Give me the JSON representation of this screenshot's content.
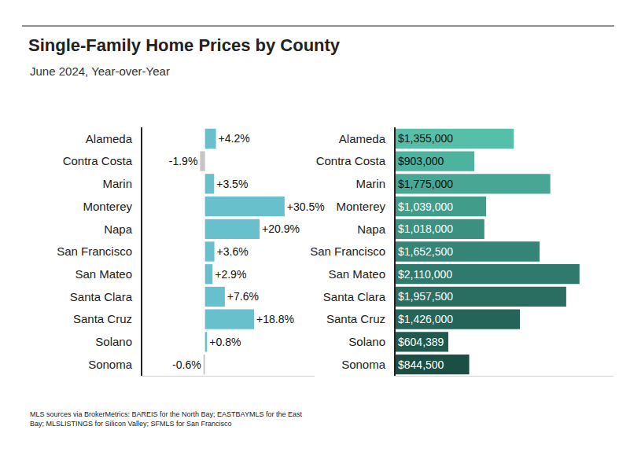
{
  "chart_data": [
    {
      "type": "bar",
      "title": "Single-Family Home Prices by County",
      "subtitle": "June 2024, Year-over-Year",
      "annotations": [
        "MLS sources via BrokerMetrics: BAREIS for the North Bay; EASTBAYMLS for the East",
        "Bay; MLSLISTINGS for Silicon Valley; SFMLS for San Francisco"
      ],
      "orientation": "horizontal",
      "categories": [
        "Alameda",
        "Contra Costa",
        "Marin",
        "Monterey",
        "Napa",
        "San Francisco",
        "San Mateo",
        "Santa Clara",
        "Santa Cruz",
        "Solano",
        "Sonoma"
      ],
      "values": [
        4.2,
        -1.9,
        3.5,
        30.5,
        20.9,
        3.6,
        2.9,
        7.6,
        18.8,
        0.8,
        -0.6
      ],
      "value_labels": [
        "+4.2%",
        "-1.9%",
        "+3.5%",
        "+30.5%",
        "+20.9%",
        "+3.6%",
        "+2.9%",
        "+7.6%",
        "+18.8%",
        "+0.8%",
        "-0.6%"
      ],
      "data_labels": true,
      "colors": [
        "#67c0cc",
        "#c6c6c6",
        "#67c0cc",
        "#67c0cc",
        "#67c0cc",
        "#67c0cc",
        "#67c0cc",
        "#67c0cc",
        "#67c0cc",
        "#67c0cc",
        "#c6c6c6"
      ],
      "xlim": [
        -24,
        42
      ],
      "xticks": [],
      "tick_labels": "y",
      "grid": false
    },
    {
      "type": "bar",
      "orientation": "horizontal",
      "categories": [
        "Alameda",
        "Contra Costa",
        "Marin",
        "Monterey",
        "Napa",
        "San Francisco",
        "San Mateo",
        "Santa Clara",
        "Santa Cruz",
        "Solano",
        "Sonoma"
      ],
      "values": [
        1355000,
        903000,
        1775000,
        1039000,
        1018000,
        1652500,
        2110000,
        1957500,
        1426000,
        604389,
        844500
      ],
      "value_labels": [
        "$1,355,000",
        "$903,000",
        "$1,775,000",
        "$1,039,000",
        "$1,018,000",
        "$1,652,500",
        "$2,110,000",
        "$1,957,500",
        "$1,426,000",
        "$604,389",
        "$844,500"
      ],
      "data_labels": true,
      "colors": [
        "#55bfa8",
        "#4db39e",
        "#47a794",
        "#419c8a",
        "#3b9080",
        "#358576",
        "#2f7a6c",
        "#2a6e62",
        "#256458",
        "#205a4e",
        "#1c4f44"
      ],
      "xlim": [
        0,
        2500000
      ],
      "xticks": [],
      "tick_labels": "y",
      "grid": false
    }
  ]
}
